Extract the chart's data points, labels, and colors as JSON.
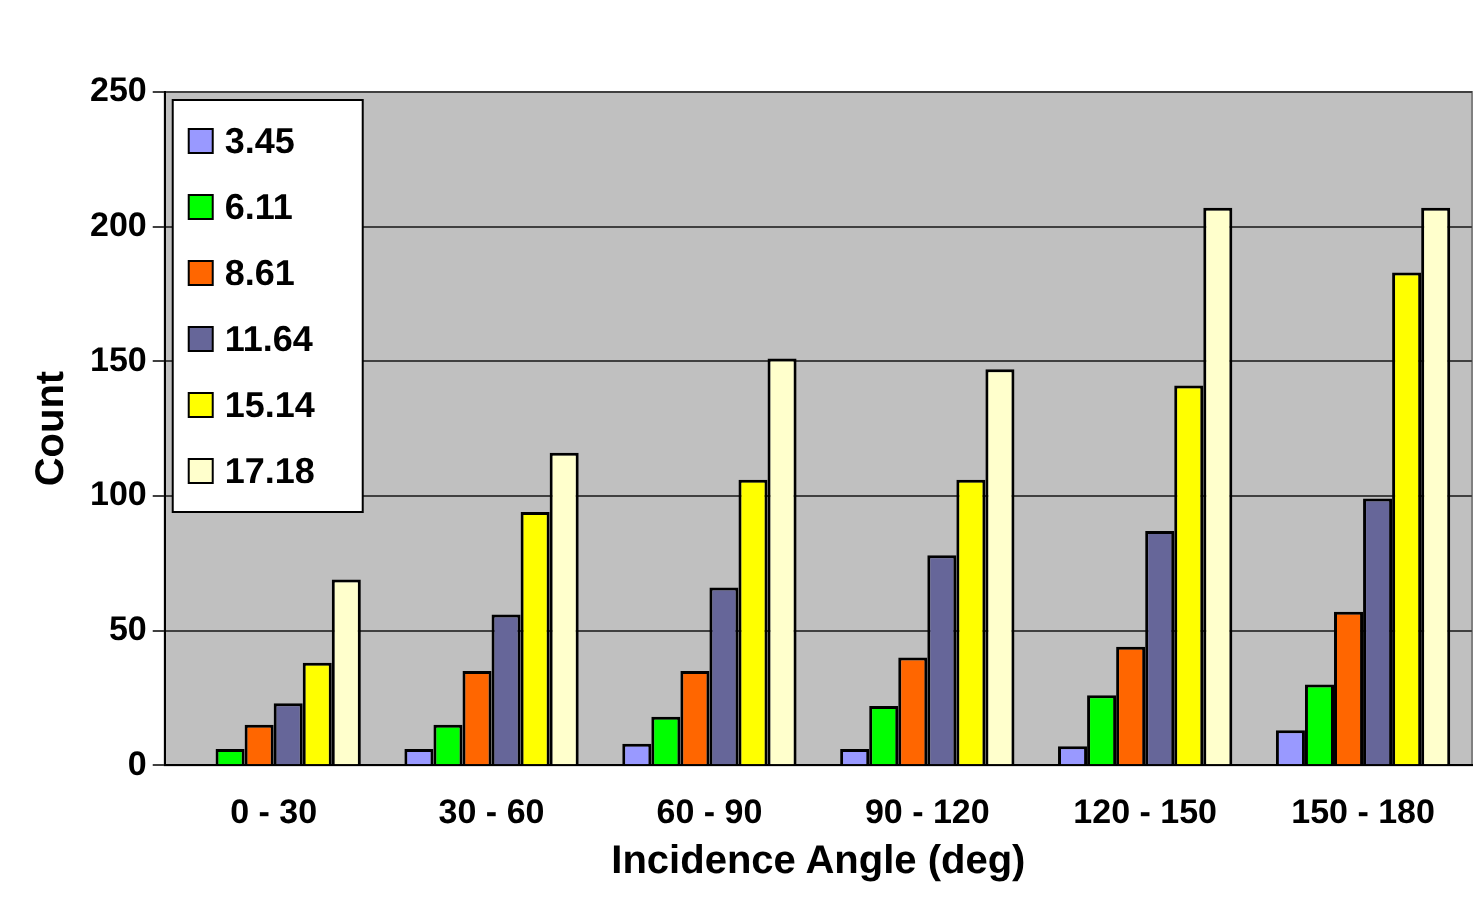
{
  "chart_data": {
    "type": "bar",
    "xlabel": "Incidence Angle (deg)",
    "ylabel": "Count",
    "categories": [
      "0 - 30",
      "30 - 60",
      "60 - 90",
      "90 - 120",
      "120 - 150",
      "150 - 180"
    ],
    "series": [
      {
        "name": "3.45",
        "color": "#9999ff",
        "values": [
          0,
          6,
          8,
          6,
          7,
          13
        ]
      },
      {
        "name": "6.11",
        "color": "#00ff00",
        "values": [
          6,
          15,
          18,
          22,
          26,
          30
        ]
      },
      {
        "name": "8.61",
        "color": "#ff6600",
        "values": [
          15,
          35,
          35,
          40,
          44,
          57
        ]
      },
      {
        "name": "11.64",
        "color": "#666699",
        "values": [
          23,
          56,
          66,
          78,
          87,
          99
        ]
      },
      {
        "name": "15.14",
        "color": "#ffff00",
        "values": [
          38,
          94,
          106,
          106,
          141,
          183
        ]
      },
      {
        "name": "17.18",
        "color": "#ffffcc",
        "values": [
          69,
          116,
          151,
          147,
          207,
          207
        ]
      }
    ],
    "ylim": [
      0,
      250
    ],
    "yticks": [
      0,
      50,
      100,
      150,
      200,
      250
    ],
    "grid": "y",
    "legend": "top left"
  }
}
